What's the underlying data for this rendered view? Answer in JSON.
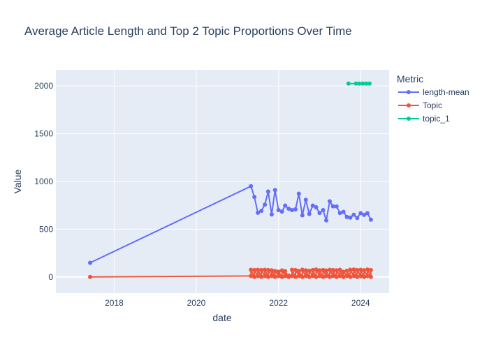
{
  "chart_data": {
    "type": "line",
    "title": "Average Article Length and Top 2 Topic Proportions Over Time",
    "xlabel": "date",
    "ylabel": "Value",
    "xlim": [
      "2016-08-01",
      "2024-09-10"
    ],
    "ylim": [
      -170,
      2170
    ],
    "x_ticks": [
      {
        "date": "2018-01-01",
        "label": "2018"
      },
      {
        "date": "2020-01-01",
        "label": "2020"
      },
      {
        "date": "2022-01-01",
        "label": "2022"
      },
      {
        "date": "2024-01-01",
        "label": "2024"
      }
    ],
    "y_ticks": [
      0,
      500,
      1000,
      1500,
      2000
    ],
    "grid": true,
    "legend": {
      "title": "Metric",
      "placement": "right"
    },
    "series": [
      {
        "name": "length-mean",
        "color": "#636efa",
        "points": [
          [
            "2017-06-01",
            148
          ],
          [
            "2021-05-01",
            950
          ],
          [
            "2021-06-01",
            838
          ],
          [
            "2021-07-01",
            672
          ],
          [
            "2021-08-01",
            692
          ],
          [
            "2021-09-01",
            758
          ],
          [
            "2021-10-01",
            895
          ],
          [
            "2021-11-01",
            654
          ],
          [
            "2021-12-01",
            910
          ],
          [
            "2022-01-01",
            700
          ],
          [
            "2022-02-01",
            685
          ],
          [
            "2022-03-01",
            748
          ],
          [
            "2022-04-01",
            715
          ],
          [
            "2022-05-01",
            700
          ],
          [
            "2022-06-01",
            708
          ],
          [
            "2022-07-01",
            872
          ],
          [
            "2022-08-01",
            645
          ],
          [
            "2022-09-01",
            808
          ],
          [
            "2022-10-01",
            660
          ],
          [
            "2022-11-01",
            748
          ],
          [
            "2022-12-01",
            730
          ],
          [
            "2023-01-01",
            670
          ],
          [
            "2023-02-01",
            700
          ],
          [
            "2023-03-01",
            592
          ],
          [
            "2023-04-01",
            792
          ],
          [
            "2023-05-01",
            740
          ],
          [
            "2023-06-01",
            738
          ],
          [
            "2023-07-01",
            670
          ],
          [
            "2023-08-01",
            682
          ],
          [
            "2023-09-01",
            628
          ],
          [
            "2023-10-01",
            622
          ],
          [
            "2023-11-01",
            652
          ],
          [
            "2023-12-01",
            618
          ],
          [
            "2024-01-01",
            668
          ],
          [
            "2024-02-01",
            650
          ],
          [
            "2024-03-01",
            668
          ],
          [
            "2024-04-01",
            600
          ]
        ]
      },
      {
        "name": "Topic",
        "color": "#ef553b",
        "points": [
          [
            "2017-06-01",
            0
          ],
          [
            "2021-05-01",
            10
          ],
          [
            "2021-05-01",
            75
          ],
          [
            "2021-06-01",
            0
          ],
          [
            "2021-06-01",
            72
          ],
          [
            "2021-07-01",
            10
          ],
          [
            "2021-07-01",
            75
          ],
          [
            "2021-08-01",
            0
          ],
          [
            "2021-08-01",
            72
          ],
          [
            "2021-09-01",
            10
          ],
          [
            "2021-09-01",
            75
          ],
          [
            "2021-10-01",
            0
          ],
          [
            "2021-10-01",
            72
          ],
          [
            "2021-11-01",
            10
          ],
          [
            "2021-11-01",
            70
          ],
          [
            "2021-12-01",
            0
          ],
          [
            "2021-12-01",
            62
          ],
          [
            "2022-01-01",
            10
          ],
          [
            "2022-01-01",
            55
          ],
          [
            "2022-02-01",
            0
          ],
          [
            "2022-02-01",
            68
          ],
          [
            "2022-03-01",
            10
          ],
          [
            "2022-03-01",
            60
          ],
          [
            "2022-04-01",
            0
          ],
          [
            "2022-04-01",
            15
          ],
          [
            "2022-05-01",
            10
          ],
          [
            "2022-05-01",
            75
          ],
          [
            "2022-06-01",
            0
          ],
          [
            "2022-06-01",
            72
          ],
          [
            "2022-07-01",
            10
          ],
          [
            "2022-07-01",
            62
          ],
          [
            "2022-08-01",
            0
          ],
          [
            "2022-08-01",
            75
          ],
          [
            "2022-09-01",
            10
          ],
          [
            "2022-09-01",
            70
          ],
          [
            "2022-10-01",
            0
          ],
          [
            "2022-10-01",
            65
          ],
          [
            "2022-11-01",
            10
          ],
          [
            "2022-11-01",
            72
          ],
          [
            "2022-12-01",
            0
          ],
          [
            "2022-12-01",
            78
          ],
          [
            "2023-01-01",
            10
          ],
          [
            "2023-01-01",
            70
          ],
          [
            "2023-02-01",
            0
          ],
          [
            "2023-02-01",
            72
          ],
          [
            "2023-03-01",
            10
          ],
          [
            "2023-03-01",
            68
          ],
          [
            "2023-04-01",
            0
          ],
          [
            "2023-04-01",
            75
          ],
          [
            "2023-05-01",
            10
          ],
          [
            "2023-05-01",
            72
          ],
          [
            "2023-06-01",
            0
          ],
          [
            "2023-06-01",
            70
          ],
          [
            "2023-07-01",
            10
          ],
          [
            "2023-07-01",
            75
          ],
          [
            "2023-08-01",
            0
          ],
          [
            "2023-08-01",
            55
          ],
          [
            "2023-09-01",
            10
          ],
          [
            "2023-09-01",
            65
          ],
          [
            "2023-10-01",
            0
          ],
          [
            "2023-10-01",
            75
          ],
          [
            "2023-11-01",
            10
          ],
          [
            "2023-11-01",
            78
          ],
          [
            "2023-12-01",
            0
          ],
          [
            "2023-12-01",
            72
          ],
          [
            "2024-01-01",
            10
          ],
          [
            "2024-01-01",
            75
          ],
          [
            "2024-02-01",
            0
          ],
          [
            "2024-02-01",
            70
          ],
          [
            "2024-03-01",
            10
          ],
          [
            "2024-03-01",
            78
          ],
          [
            "2024-04-01",
            0
          ],
          [
            "2024-04-01",
            72
          ]
        ]
      },
      {
        "name": "topic_1",
        "color": "#00cc96",
        "points": [
          [
            "2023-09-15",
            2025
          ],
          [
            "2023-11-20",
            2025
          ],
          [
            "2023-12-20",
            2025
          ],
          [
            "2024-01-20",
            2025
          ],
          [
            "2024-02-20",
            2025
          ],
          [
            "2024-03-20",
            2025
          ]
        ]
      }
    ]
  }
}
